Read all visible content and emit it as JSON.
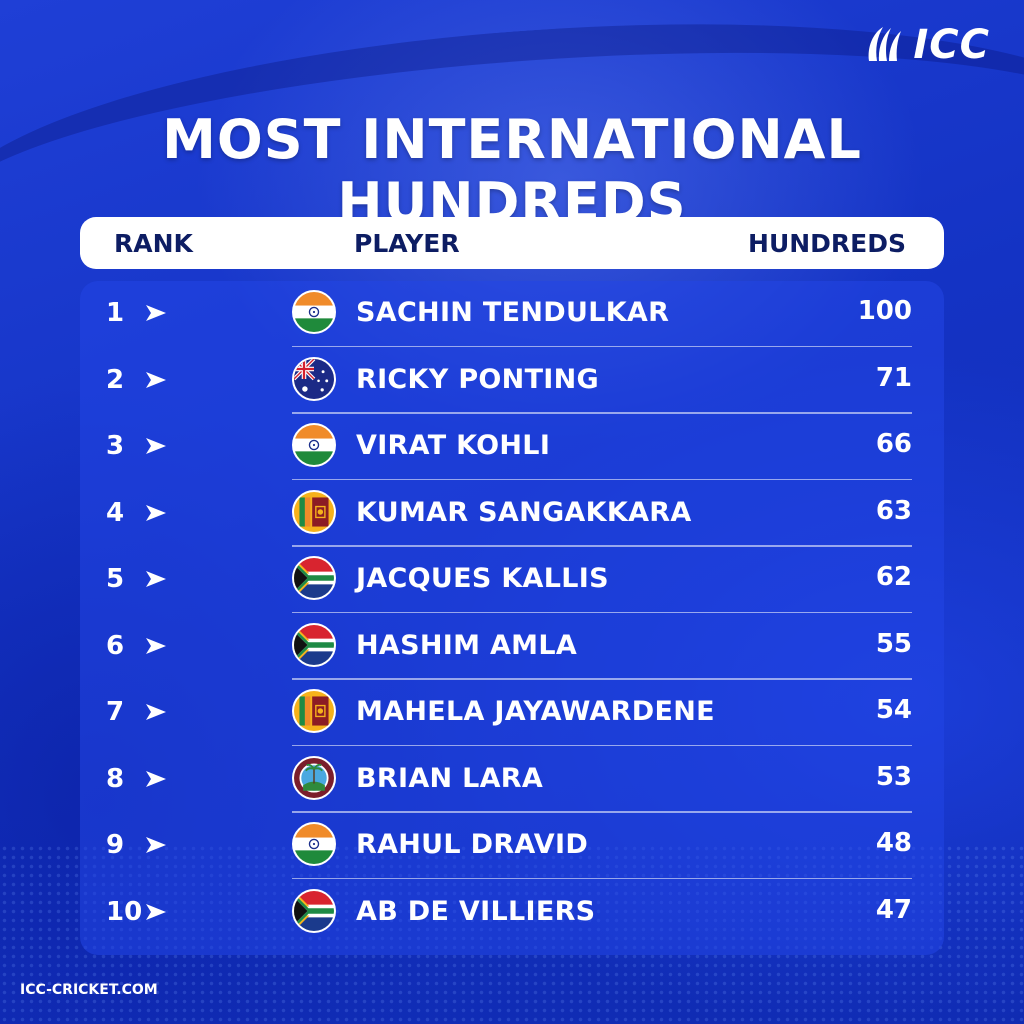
{
  "brand": {
    "logo_text": "ICC",
    "website": "ICC-CRICKET.COM"
  },
  "title": "MOST INTERNATIONAL HUNDREDS",
  "headers": {
    "rank": "RANK",
    "player": "PLAYER",
    "hundreds": "HUNDREDS"
  },
  "colors": {
    "background": "#1633c9",
    "header_bar": "#ffffff",
    "header_text": "#0d1d63",
    "text": "#ffffff"
  },
  "rows": [
    {
      "rank": "1",
      "player": "SACHIN TENDULKAR",
      "hundreds": "100",
      "flag": "india-flag-icon"
    },
    {
      "rank": "2",
      "player": "RICKY PONTING",
      "hundreds": "71",
      "flag": "australia-flag-icon"
    },
    {
      "rank": "3",
      "player": "VIRAT KOHLI",
      "hundreds": "66",
      "flag": "india-flag-icon"
    },
    {
      "rank": "4",
      "player": "KUMAR SANGAKKARA",
      "hundreds": "63",
      "flag": "sri-lanka-flag-icon"
    },
    {
      "rank": "5",
      "player": "JACQUES KALLIS",
      "hundreds": "62",
      "flag": "south-africa-flag-icon"
    },
    {
      "rank": "6",
      "player": "HASHIM AMLA",
      "hundreds": "55",
      "flag": "south-africa-flag-icon"
    },
    {
      "rank": "7",
      "player": "MAHELA JAYAWARDENE",
      "hundreds": "54",
      "flag": "sri-lanka-flag-icon"
    },
    {
      "rank": "8",
      "player": "BRIAN LARA",
      "hundreds": "53",
      "flag": "west-indies-flag-icon"
    },
    {
      "rank": "9",
      "player": "RAHUL DRAVID",
      "hundreds": "48",
      "flag": "india-flag-icon"
    },
    {
      "rank": "10",
      "player": "AB DE VILLIERS",
      "hundreds": "47",
      "flag": "south-africa-flag-icon"
    }
  ]
}
